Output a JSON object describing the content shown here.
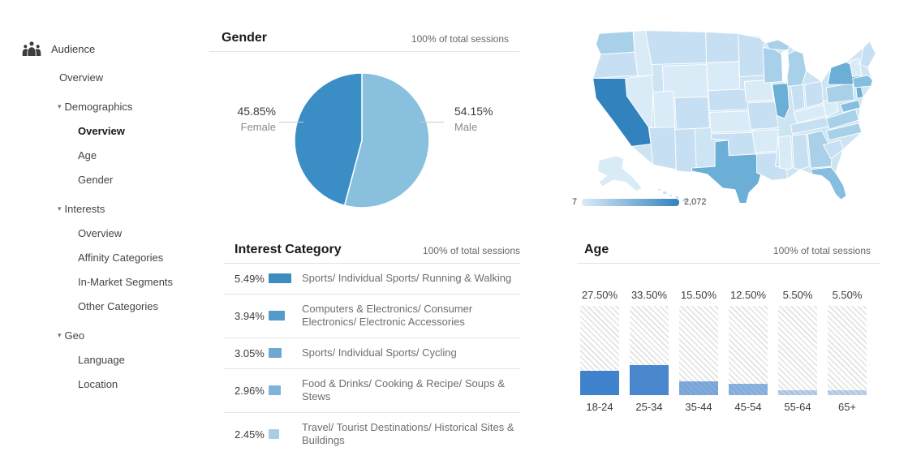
{
  "sidebar": {
    "header": {
      "icon": "audience-icon",
      "label": "Audience"
    },
    "items": [
      {
        "label": "Overview",
        "level": 1
      },
      {
        "label": "Demographics",
        "level": 1,
        "expanded": true
      },
      {
        "label": "Overview",
        "level": 2,
        "active": true
      },
      {
        "label": "Age",
        "level": 2
      },
      {
        "label": "Gender",
        "level": 2
      },
      {
        "label": "Interests",
        "level": 1,
        "expanded": true
      },
      {
        "label": "Overview",
        "level": 2
      },
      {
        "label": "Affinity Categories",
        "level": 2
      },
      {
        "label": "In-Market Segments",
        "level": 2
      },
      {
        "label": "Other Categories",
        "level": 2
      },
      {
        "label": "Geo",
        "level": 1,
        "expanded": true
      },
      {
        "label": "Language",
        "level": 2
      },
      {
        "label": "Location",
        "level": 2
      }
    ]
  },
  "gender": {
    "title": "Gender",
    "subtitle": "100% of total sessions",
    "slices": [
      {
        "label": "Male",
        "value": 54.15,
        "display": "54.15%",
        "color": "#88c0de"
      },
      {
        "label": "Female",
        "value": 45.85,
        "display": "45.85%",
        "color": "#3a8ec5"
      }
    ]
  },
  "interest": {
    "title": "Interest Category",
    "subtitle": "100% of total sessions",
    "rows": [
      {
        "pct": "5.49%",
        "value": 5.49,
        "label": "Sports/ Individual Sports/ Running & Walking",
        "color": "#3e8bc0"
      },
      {
        "pct": "3.94%",
        "value": 3.94,
        "label": "Computers & Electronics/ Consumer Electronics/ Electronic Accessories",
        "color": "#539bca"
      },
      {
        "pct": "3.05%",
        "value": 3.05,
        "label": "Sports/ Individual Sports/ Cycling",
        "color": "#6ea9d2"
      },
      {
        "pct": "2.96%",
        "value": 2.96,
        "label": "Food & Drinks/ Cooking & Recipe/ Soups & Stews",
        "color": "#7fb4d9"
      },
      {
        "pct": "2.45%",
        "value": 2.45,
        "label": "Travel/ Tourist Destinations/ Historical Sites & Buildings",
        "color": "#a9cde6"
      }
    ]
  },
  "age": {
    "title": "Age",
    "subtitle": "100% of total sessions",
    "bars": [
      {
        "pct": "27.50%",
        "value": 27.5,
        "label": "18-24",
        "fill": "rgba(50,120,200,0.93)"
      },
      {
        "pct": "33.50%",
        "value": 33.5,
        "label": "25-34",
        "fill": "rgba(50,120,200,0.88)"
      },
      {
        "pct": "15.50%",
        "value": 15.5,
        "label": "35-44",
        "fill": "rgba(50,120,200,0.62)"
      },
      {
        "pct": "12.50%",
        "value": 12.5,
        "label": "45-54",
        "fill": "rgba(50,120,200,0.55)"
      },
      {
        "pct": "5.50%",
        "value": 5.5,
        "label": "55-64",
        "fill": "rgba(50,120,200,0.34)"
      },
      {
        "pct": "5.50%",
        "value": 5.5,
        "label": "65+",
        "fill": "rgba(50,120,200,0.30)"
      }
    ]
  },
  "map": {
    "legend_min": "7",
    "legend_max": "2,072",
    "palette": [
      "#d9ebf7",
      "#c6dff2",
      "#a8d0e8",
      "#85bede",
      "#6baed6",
      "#3182bd"
    ],
    "state_levels": {
      "CA": 5,
      "TX": 4,
      "NY": 4,
      "IL": 4,
      "NJ": 4,
      "FL": 3,
      "MA": 3,
      "MD": 3,
      "MI": 2,
      "WI": 2,
      "WA": 2,
      "PA": 2,
      "VA": 2,
      "NC": 2,
      "GA": 2,
      "MN": 1,
      "OH": 1,
      "IN": 1,
      "MO": 1,
      "TN": 1,
      "CO": 1,
      "AZ": 1,
      "OR": 1,
      "MT": 1,
      "ND": 1,
      "NE": 1,
      "OK": 1,
      "LA": 1,
      "AL": 1,
      "SC": 1,
      "ME": 1,
      "HI": 1,
      "ID": 0,
      "NV": 0,
      "UT": 0,
      "WY": 0,
      "SD": 0,
      "KS": 0,
      "IA": 0,
      "AR": 0,
      "MS": 0,
      "KY": 0,
      "WV": 0,
      "VT": 0,
      "AK": 0
    }
  },
  "chart_data": [
    {
      "type": "pie",
      "title": "Gender",
      "annotation": "100% of total sessions",
      "labels": [
        "Male",
        "Female"
      ],
      "values": [
        54.15,
        45.85
      ],
      "colors": [
        "#88c0de",
        "#3a8ec5"
      ],
      "start_angle": "12 o'clock, clockwise, Male first"
    },
    {
      "type": "bar",
      "title": "Interest Category",
      "annotation": "100% of total sessions",
      "orientation": "horizontal",
      "categories": [
        "Sports/ Individual Sports/ Running & Walking",
        "Computers & Electronics/ Consumer Electronics/ Electronic Accessories",
        "Sports/ Individual Sports/ Cycling",
        "Food & Drinks/ Cooking & Recipe/ Soups & Stews",
        "Travel/ Tourist Destinations/ Historical Sites & Buildings"
      ],
      "values": [
        5.49,
        3.94,
        3.05,
        2.96,
        2.45
      ],
      "unit": "%"
    },
    {
      "type": "bar",
      "title": "Age",
      "annotation": "100% of total sessions",
      "categories": [
        "18-24",
        "25-34",
        "35-44",
        "45-54",
        "55-64",
        "65+"
      ],
      "values": [
        27.5,
        33.5,
        15.5,
        12.5,
        5.5,
        5.5
      ],
      "unit": "%",
      "ylim": [
        0,
        100
      ]
    },
    {
      "type": "heatmap",
      "subtype": "us-choropleth",
      "legend_min": 7,
      "legend_max": 2072,
      "highest_state": "CA",
      "high_states": [
        "TX",
        "NY",
        "IL",
        "NJ"
      ],
      "medium_states": [
        "FL",
        "MA",
        "MD",
        "MI",
        "WI",
        "WA",
        "PA",
        "VA",
        "NC",
        "GA"
      ]
    }
  ]
}
